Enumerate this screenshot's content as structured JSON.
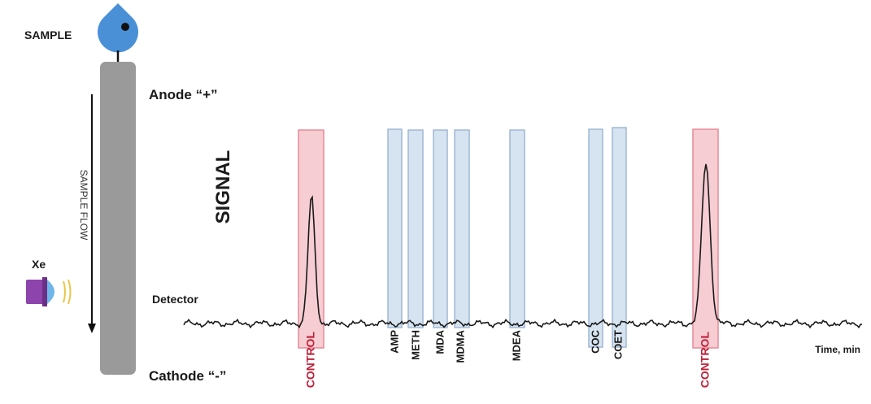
{
  "labels": {
    "sample": "SAMPLE",
    "anode": "Anode “+”",
    "cathode": "Cathode “-”",
    "sample_flow": "SAMPLE FLOW",
    "xe": "Xe",
    "detector": "Detector",
    "signal": "SIGNAL",
    "time": "Time, min"
  },
  "colors": {
    "capillary": "#9a9a9a",
    "drop": "#4a90d6",
    "control_band": "#f6cdd2",
    "control_border": "#e68a96",
    "analyte_band": "#d6e3f0",
    "analyte_border": "#9fb8d4",
    "control_text": "#c0203a",
    "lamp": "#8e44ad",
    "lamp_lens": "#6fb7e8",
    "lamp_rays": "#e8c84a",
    "trace": "#1a1a1a"
  },
  "bands": [
    {
      "label": "CONTROL",
      "type": "control"
    },
    {
      "label": "AMP",
      "type": "analyte"
    },
    {
      "label": "METH",
      "type": "analyte"
    },
    {
      "label": "MDA",
      "type": "analyte"
    },
    {
      "label": "MDMA",
      "type": "analyte"
    },
    {
      "label": "MDEA",
      "type": "analyte"
    },
    {
      "label": "COC",
      "type": "analyte"
    },
    {
      "label": "COET",
      "type": "analyte"
    },
    {
      "label": "CONTROL",
      "type": "control"
    }
  ]
}
